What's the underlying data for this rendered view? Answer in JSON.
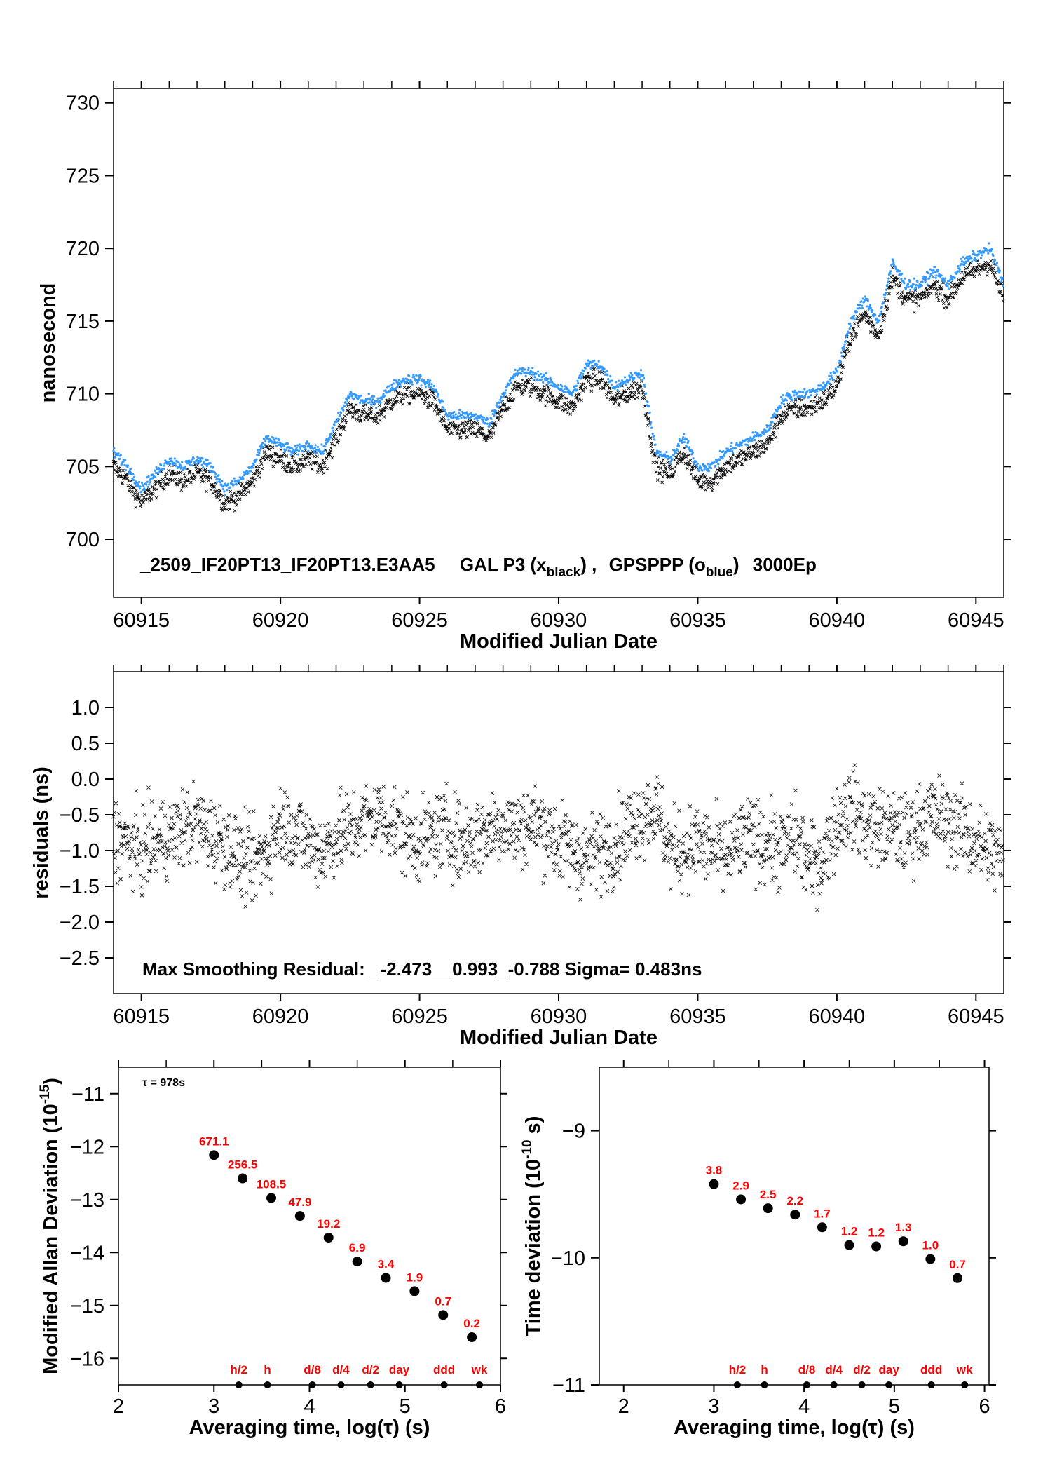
{
  "chart_data": [
    {
      "type": "scatter",
      "title": "_2509_IF20PT13_IF20PT13.E3AA5    GAL P3 (x_black) ,  GPSPPP (o_blue)  3000Ep",
      "title_parts": {
        "main": "_2509_IF20PT13_IF20PT13.E3AA5",
        "a": "GAL P3 (x",
        "a_sub": "black",
        "a_end": ") ,",
        "b": "GPSPPP (o",
        "b_sub": "blue",
        "b_end": ")",
        "c": "3000Ep"
      },
      "xlabel": "Modified Julian Date",
      "ylabel": "nanosecond",
      "xlim": [
        60914,
        60946
      ],
      "ylim": [
        696,
        731
      ],
      "xticks": [
        "60915",
        "60920",
        "60925",
        "60930",
        "60935",
        "60940",
        "60945"
      ],
      "yticks": [
        "700",
        "705",
        "710",
        "715",
        "720",
        "725",
        "730"
      ],
      "series": [
        {
          "marker": "x",
          "color": "#000000",
          "x_start": 60914,
          "x_step": 0.5,
          "values": [
            705,
            704,
            702.5,
            703.5,
            704.5,
            704,
            704.5,
            704,
            702.5,
            703,
            704,
            706,
            705.5,
            705,
            705.5,
            705,
            707,
            709,
            708.5,
            708.5,
            709.5,
            710,
            710,
            709.5,
            707.5,
            707.5,
            707.5,
            707,
            709,
            710.5,
            710.5,
            710,
            709.5,
            709,
            711,
            711,
            709.5,
            710,
            710.5,
            705,
            704.5,
            706,
            704,
            704,
            705,
            705.5,
            706,
            706.5,
            708.5,
            709,
            709,
            709.5,
            710.5,
            714,
            715.5,
            714,
            718,
            716.5,
            716.5,
            717.5,
            716.5,
            718,
            718.5,
            719,
            716.5
          ]
        },
        {
          "marker": "o",
          "color": "#3399ff",
          "x_start": 60914,
          "x_step": 0.5,
          "values": [
            706,
            705,
            703.5,
            704.5,
            705.5,
            705,
            705.5,
            705,
            703.5,
            704,
            705,
            707,
            706.5,
            706,
            706.5,
            706,
            708,
            710,
            709.5,
            709.5,
            710.5,
            711,
            711,
            710.5,
            708.5,
            708.5,
            708.5,
            708,
            710,
            711.5,
            711.5,
            711,
            710.5,
            710,
            712,
            712,
            710.5,
            711,
            711.5,
            706,
            705.5,
            707,
            705,
            705,
            706,
            706.5,
            707,
            707.5,
            709.5,
            710,
            710,
            710.5,
            711.5,
            715,
            716.5,
            715,
            719,
            717.5,
            717.5,
            718.5,
            717.5,
            719,
            719.5,
            720,
            717.5
          ]
        }
      ]
    },
    {
      "type": "scatter",
      "xlabel": "Modified Julian Date",
      "ylabel": "residuals (ns)",
      "xlim": [
        60914,
        60946
      ],
      "ylim": [
        -3.0,
        1.5
      ],
      "xticks": [
        "60915",
        "60920",
        "60925",
        "60930",
        "60935",
        "60940",
        "60945"
      ],
      "yticks": [
        "1.0",
        "0.5",
        "0.0",
        "−0.5",
        "−1.0",
        "−1.5",
        "−2.0",
        "−2.5"
      ],
      "annotation": "Max Smoothing Residual: _-2.473__0.993_-0.788  Sigma= 0.483ns",
      "series": [
        {
          "marker": "x",
          "color": "#000000",
          "x_start": 60914,
          "x_step": 0.5,
          "values": [
            -0.8,
            -0.9,
            -1.0,
            -0.9,
            -0.8,
            -0.7,
            -0.6,
            -0.8,
            -0.9,
            -1.1,
            -1.2,
            -1.0,
            -0.6,
            -0.7,
            -0.9,
            -1.0,
            -0.8,
            -0.7,
            -0.6,
            -0.5,
            -0.6,
            -0.8,
            -0.9,
            -0.8,
            -0.7,
            -0.9,
            -0.8,
            -0.7,
            -0.6,
            -0.7,
            -0.6,
            -0.7,
            -0.9,
            -1.0,
            -1.1,
            -1.0,
            -0.9,
            -0.7,
            -0.5,
            -0.4,
            -1.0,
            -1.0,
            -0.9,
            -1.0,
            -1.1,
            -0.9,
            -0.8,
            -0.9,
            -1.0,
            -0.8,
            -1.2,
            -1.1,
            -0.6,
            -0.4,
            -0.6,
            -0.7,
            -0.7,
            -0.8,
            -0.6,
            -0.5,
            -0.6,
            -0.7,
            -0.9,
            -1.0,
            -1.1
          ]
        }
      ]
    },
    {
      "type": "scatter",
      "xlabel": "Averaging time, log(τ) (s)",
      "ylabel": "Modified Allan Deviation (10",
      "ylabel_sup": "-15",
      "ylabel_end": ")",
      "xlim": [
        2,
        6
      ],
      "ylim": [
        -16.5,
        -10.5
      ],
      "xticks": [
        "2",
        "3",
        "4",
        "5",
        "6"
      ],
      "yticks": [
        "−11",
        "−12",
        "−13",
        "−14",
        "−15",
        "−16"
      ],
      "annotation": "τ = 978s",
      "x": [
        3.0,
        3.3,
        3.6,
        3.9,
        4.2,
        4.5,
        4.8,
        5.1,
        5.4,
        5.7
      ],
      "y": [
        -12.16,
        -12.6,
        -12.97,
        -13.31,
        -13.72,
        -14.17,
        -14.48,
        -14.73,
        -15.18,
        -15.6
      ],
      "labels": [
        "671.1",
        "256.5",
        "108.5",
        "47.9",
        "19.2",
        "6.9",
        "3.4",
        "1.9",
        "0.7",
        "0.2"
      ],
      "markers": [
        {
          "label": "h/2",
          "x": 3.26
        },
        {
          "label": "h",
          "x": 3.56
        },
        {
          "label": "d/8",
          "x": 4.03
        },
        {
          "label": "d/4",
          "x": 4.33
        },
        {
          "label": "d/2",
          "x": 4.64
        },
        {
          "label": "day",
          "x": 4.94
        },
        {
          "label": "ddd",
          "x": 5.41
        },
        {
          "label": "wk",
          "x": 5.78
        }
      ]
    },
    {
      "type": "scatter",
      "xlabel": "Averaging time, log(τ) (s)",
      "ylabel": "Time deviation (10",
      "ylabel_sup": "-10",
      "ylabel_end": " s)",
      "xlim": [
        1.73,
        6.05
      ],
      "ylim": [
        -11,
        -8.5
      ],
      "xticks": [
        "2",
        "3",
        "4",
        "5",
        "6"
      ],
      "yticks": [
        "−9",
        "−10",
        "−11"
      ],
      "x": [
        3.0,
        3.3,
        3.6,
        3.9,
        4.2,
        4.5,
        4.8,
        5.1,
        5.4,
        5.7
      ],
      "y": [
        -9.42,
        -9.54,
        -9.61,
        -9.66,
        -9.76,
        -9.9,
        -9.91,
        -9.87,
        -10.01,
        -10.16
      ],
      "labels": [
        "3.8",
        "2.9",
        "2.5",
        "2.2",
        "1.7",
        "1.2",
        "1.2",
        "1.3",
        "1.0",
        "0.7"
      ],
      "markers": [
        {
          "label": "h/2",
          "x": 3.26
        },
        {
          "label": "h",
          "x": 3.56
        },
        {
          "label": "d/8",
          "x": 4.03
        },
        {
          "label": "d/4",
          "x": 4.33
        },
        {
          "label": "d/2",
          "x": 4.64
        },
        {
          "label": "day",
          "x": 4.94
        },
        {
          "label": "ddd",
          "x": 5.41
        },
        {
          "label": "wk",
          "x": 5.78
        }
      ]
    }
  ],
  "colors": {
    "black_series": "#000000",
    "blue_series": "#3399ff",
    "labels": "#ff0000"
  }
}
